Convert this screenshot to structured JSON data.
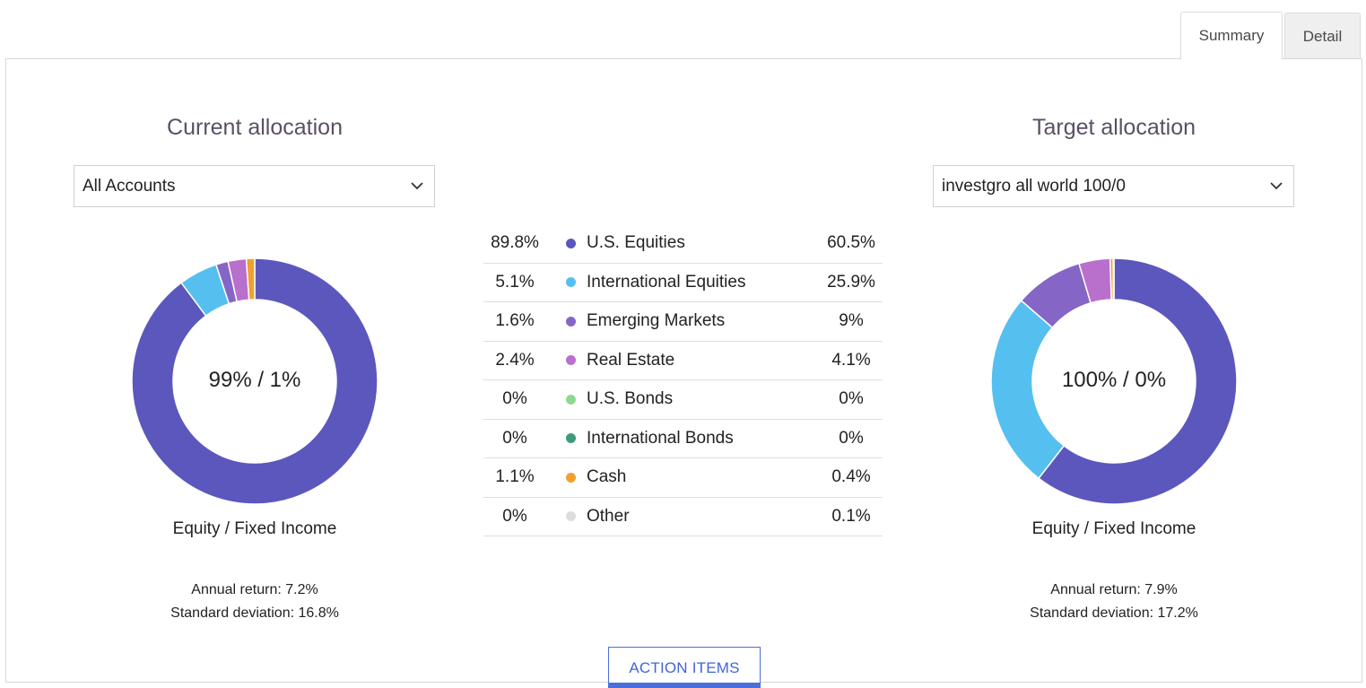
{
  "tabs": [
    {
      "label": "Summary",
      "active": true
    },
    {
      "label": "Detail",
      "active": false
    }
  ],
  "current": {
    "title": "Current allocation",
    "account_select": "All Accounts",
    "center_label": "99% / 1%",
    "caption": "Equity / Fixed Income",
    "annual_return": "Annual return: 7.2%",
    "std_dev": "Standard deviation: 16.8%"
  },
  "target": {
    "title": "Target allocation",
    "portfolio_select": "investgro all world 100/0",
    "center_label": "100% / 0%",
    "caption": "Equity / Fixed Income",
    "annual_return": "Annual return: 7.9%",
    "std_dev": "Standard deviation: 17.2%"
  },
  "legend": [
    {
      "current": "89.8%",
      "name": "U.S. Equities",
      "target": "60.5%",
      "color": "#5b57bd"
    },
    {
      "current": "5.1%",
      "name": "International Equities",
      "target": "25.9%",
      "color": "#55c0f0"
    },
    {
      "current": "1.6%",
      "name": "Emerging Markets",
      "target": "9%",
      "color": "#8566c6"
    },
    {
      "current": "2.4%",
      "name": "Real Estate",
      "target": "4.1%",
      "color": "#b96fcc"
    },
    {
      "current": "0%",
      "name": "U.S. Bonds",
      "target": "0%",
      "color": "#8fd98f"
    },
    {
      "current": "0%",
      "name": "International Bonds",
      "target": "0%",
      "color": "#3e9a7c"
    },
    {
      "current": "1.1%",
      "name": "Cash",
      "target": "0.4%",
      "color": "#f0a030"
    },
    {
      "current": "0%",
      "name": "Other",
      "target": "0.1%",
      "color": "#dddddd"
    }
  ],
  "chart_data": [
    {
      "type": "pie",
      "categories": [
        "U.S. Equities",
        "International Equities",
        "Emerging Markets",
        "Real Estate",
        "U.S. Bonds",
        "International Bonds",
        "Cash",
        "Other"
      ],
      "values": [
        89.8,
        5.1,
        1.6,
        2.4,
        0,
        0,
        1.1,
        0
      ],
      "colors": [
        "#5b57bd",
        "#55c0f0",
        "#8566c6",
        "#b96fcc",
        "#8fd98f",
        "#3e9a7c",
        "#f0a030",
        "#dddddd"
      ]
    },
    {
      "type": "pie",
      "categories": [
        "U.S. Equities",
        "International Equities",
        "Emerging Markets",
        "Real Estate",
        "U.S. Bonds",
        "International Bonds",
        "Cash",
        "Other"
      ],
      "values": [
        60.5,
        25.9,
        9,
        4.1,
        0,
        0,
        0.4,
        0.1
      ],
      "colors": [
        "#5b57bd",
        "#55c0f0",
        "#8566c6",
        "#b96fcc",
        "#8fd98f",
        "#3e9a7c",
        "#f0a030",
        "#dddddd"
      ]
    }
  ],
  "action_button": "ACTION ITEMS"
}
